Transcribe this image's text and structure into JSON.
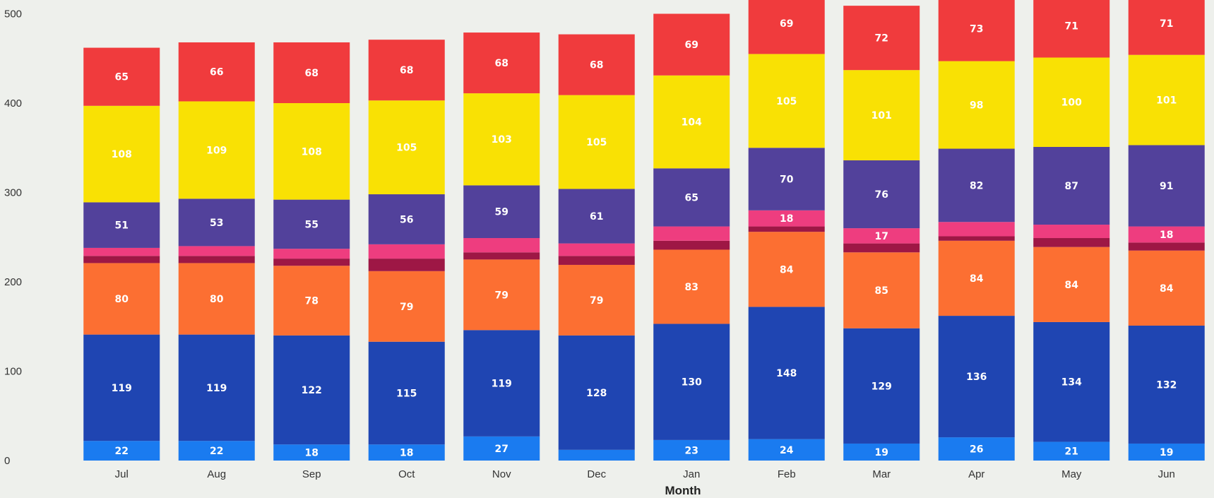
{
  "chart_data": {
    "type": "bar",
    "stacked": true,
    "title": "",
    "xlabel": "Month",
    "ylabel": "",
    "ylim": [
      0,
      520
    ],
    "yticks": [
      0,
      100,
      200,
      300,
      400,
      500
    ],
    "grid": false,
    "legend": "none",
    "categories": [
      "Jul",
      "Aug",
      "Sep",
      "Oct",
      "Nov",
      "Dec",
      "Jan",
      "Feb",
      "Mar",
      "Apr",
      "May",
      "Jun"
    ],
    "series": [
      {
        "color": "#1a7bf0",
        "values": [
          22,
          22,
          18,
          18,
          27,
          12,
          23,
          24,
          19,
          26,
          21,
          19
        ],
        "labels": [
          "22",
          "22",
          "18",
          "18",
          "27",
          "",
          "23",
          "24",
          "19",
          "26",
          "21",
          "19"
        ]
      },
      {
        "color": "#1f45b2",
        "values": [
          119,
          119,
          122,
          115,
          119,
          128,
          130,
          148,
          129,
          136,
          134,
          132
        ],
        "labels": [
          "119",
          "119",
          "122",
          "115",
          "119",
          "128",
          "130",
          "148",
          "129",
          "136",
          "134",
          "132"
        ]
      },
      {
        "color": "#fc6f32",
        "values": [
          80,
          80,
          78,
          79,
          79,
          79,
          83,
          84,
          85,
          84,
          84,
          84
        ],
        "labels": [
          "80",
          "80",
          "78",
          "79",
          "79",
          "79",
          "83",
          "84",
          "85",
          "84",
          "84",
          "84"
        ]
      },
      {
        "color": "#9e1745",
        "values": [
          8,
          8,
          8,
          14,
          8,
          10,
          10,
          6,
          10,
          5,
          10,
          9
        ],
        "labels": [
          "",
          "",
          "",
          "",
          "",
          "",
          "",
          "",
          "",
          "",
          "",
          ""
        ]
      },
      {
        "color": "#ee3d7f",
        "values": [
          9,
          11,
          11,
          16,
          16,
          14,
          16,
          18,
          17,
          16,
          15,
          18
        ],
        "labels": [
          "",
          "",
          "",
          "",
          "",
          "",
          "",
          "18",
          "17",
          "",
          "",
          "18"
        ]
      },
      {
        "color": "#52419b",
        "values": [
          51,
          53,
          55,
          56,
          59,
          61,
          65,
          70,
          76,
          82,
          87,
          91
        ],
        "labels": [
          "51",
          "53",
          "55",
          "56",
          "59",
          "61",
          "65",
          "70",
          "76",
          "82",
          "87",
          "91"
        ]
      },
      {
        "color": "#f9e104",
        "values": [
          108,
          109,
          108,
          105,
          103,
          105,
          104,
          105,
          101,
          98,
          100,
          101
        ],
        "labels": [
          "108",
          "109",
          "108",
          "105",
          "103",
          "105",
          "104",
          "105",
          "101",
          "98",
          "100",
          "101"
        ]
      },
      {
        "color": "#f03b3d",
        "values": [
          65,
          66,
          68,
          68,
          68,
          68,
          69,
          69,
          72,
          73,
          71,
          71
        ],
        "labels": [
          "65",
          "66",
          "68",
          "68",
          "68",
          "68",
          "69",
          "69",
          "72",
          "73",
          "71",
          "71"
        ]
      }
    ]
  }
}
